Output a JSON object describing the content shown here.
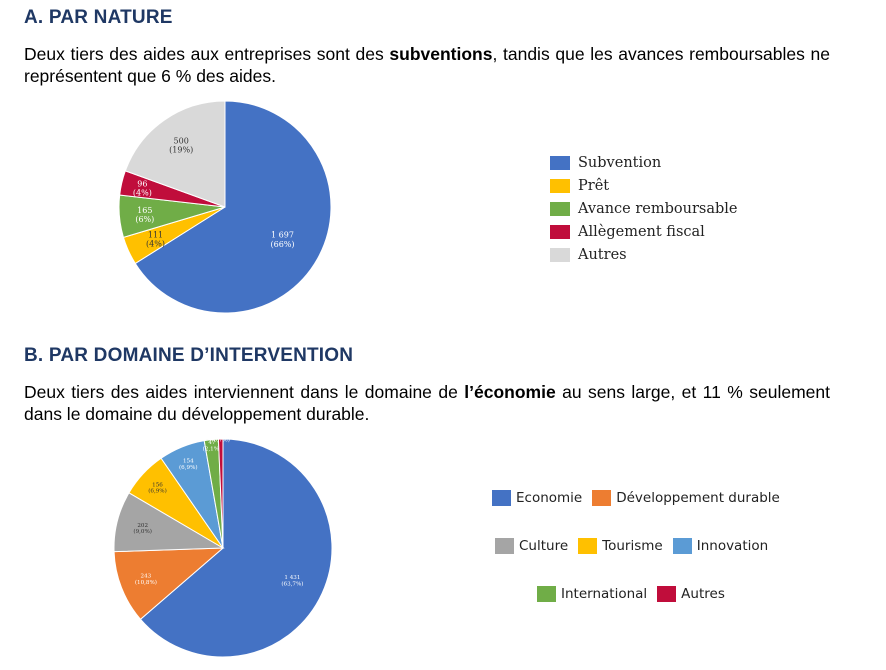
{
  "sectionA": {
    "title": "A. PAR NATURE",
    "text_before": "Deux tiers des aides aux entreprises sont des ",
    "text_bold": "subventions",
    "text_after": ", tandis que les avances remboursables ne représentent que 6 % des aides."
  },
  "sectionB": {
    "title": "B. PAR DOMAINE D’INTERVENTION",
    "text_before": "Deux tiers des aides interviennent dans le domaine de ",
    "text_bold": "l’économie",
    "text_after": " au sens large, et 11 % seulement dans le domaine du développement durable."
  },
  "chart_data": [
    {
      "type": "pie",
      "title": "",
      "legend_position": "right",
      "slices": [
        {
          "name": "Subvention",
          "value": 1697,
          "label": "1 697",
          "pct": "(66%)",
          "color": "#4472c4"
        },
        {
          "name": "Prêt",
          "value": 111,
          "label": "111",
          "pct": "(4%)",
          "color": "#ffc000"
        },
        {
          "name": "Avance remboursable",
          "value": 165,
          "label": "165",
          "pct": "(6%)",
          "color": "#70ad47"
        },
        {
          "name": "Allègement fiscal",
          "value": 96,
          "label": "96",
          "pct": "(4%)",
          "color": "#c00d3b"
        },
        {
          "name": "Autres",
          "value": 500,
          "label": "500",
          "pct": "(19%)",
          "color": "#d9d9d9"
        }
      ]
    },
    {
      "type": "pie",
      "title": "",
      "legend_position": "right",
      "slices": [
        {
          "name": "Economie",
          "value": 1431,
          "label": "1 431",
          "pct": "(63,7%)",
          "color": "#4472c4"
        },
        {
          "name": "Développement durable",
          "value": 243,
          "label": "243",
          "pct": "(10,8%)",
          "color": "#ed7d31"
        },
        {
          "name": "Culture",
          "value": 202,
          "label": "202",
          "pct": "(9,0%)",
          "color": "#a5a5a5"
        },
        {
          "name": "Tourisme",
          "value": 156,
          "label": "156",
          "pct": "(6,9%)",
          "color": "#ffc000"
        },
        {
          "name": "Innovation",
          "value": 154,
          "label": "154",
          "pct": "(6,9%)",
          "color": "#5b9bd5"
        },
        {
          "name": "International",
          "value": 47,
          "label": "47",
          "pct": "(2,1%)",
          "color": "#70ad47"
        },
        {
          "name": "Autres",
          "value": 15,
          "label": "15",
          "pct": "(0,7%)",
          "color": "#c00d3b"
        }
      ]
    }
  ]
}
